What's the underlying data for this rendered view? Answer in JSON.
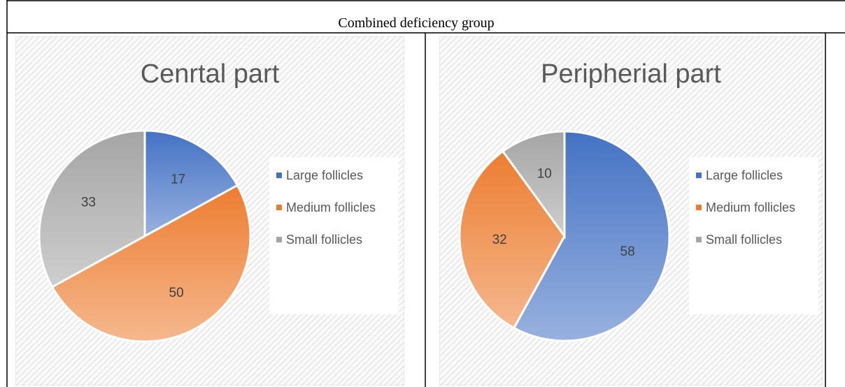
{
  "title": "Combined deficiency group",
  "chart_data": [
    {
      "type": "pie",
      "title": "Cenrtal part",
      "categories": [
        "Large follicles",
        "Medium follicles",
        "Small follicles"
      ],
      "values": [
        17,
        50,
        33
      ],
      "colors": [
        "#4472c4",
        "#ed7d31",
        "#a5a5a5"
      ],
      "legend": "right"
    },
    {
      "type": "pie",
      "title": "Peripherial part",
      "categories": [
        "Large follicles",
        "Medium follicles",
        "Small follicles"
      ],
      "values": [
        58,
        32,
        10
      ],
      "colors": [
        "#4472c4",
        "#ed7d31",
        "#a5a5a5"
      ],
      "legend": "right"
    }
  ]
}
